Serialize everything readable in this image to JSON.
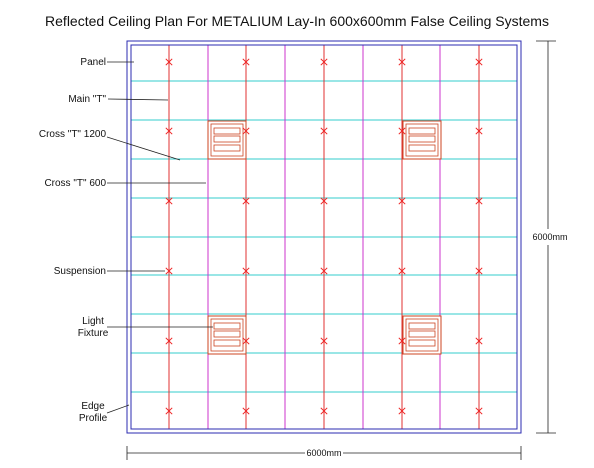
{
  "title": "Reflected Ceiling Plan For METALIUM Lay-In 600x600mm False Ceiling Systems",
  "labels": {
    "panel": "Panel",
    "main_t": "Main \"T\"",
    "cross_t_1200": "Cross \"T\" 1200",
    "cross_t_600": "Cross \"T\" 600",
    "suspension": "Suspension",
    "light_fixture_line1": "Light",
    "light_fixture_line2": "Fixture",
    "edge_profile_line1": "Edge",
    "edge_profile_line2": "Profile"
  },
  "dimensions": {
    "height": "6000mm",
    "width": "6000mm"
  },
  "colors": {
    "edge_profile": "#2b2bb0",
    "main_t": "#e03030",
    "cross_t_1200": "#cc33cc",
    "cross_t_600": "#33cccc",
    "suspension": "#ee2222",
    "light_fixture": "#cc4422",
    "leader": "#222222"
  }
}
